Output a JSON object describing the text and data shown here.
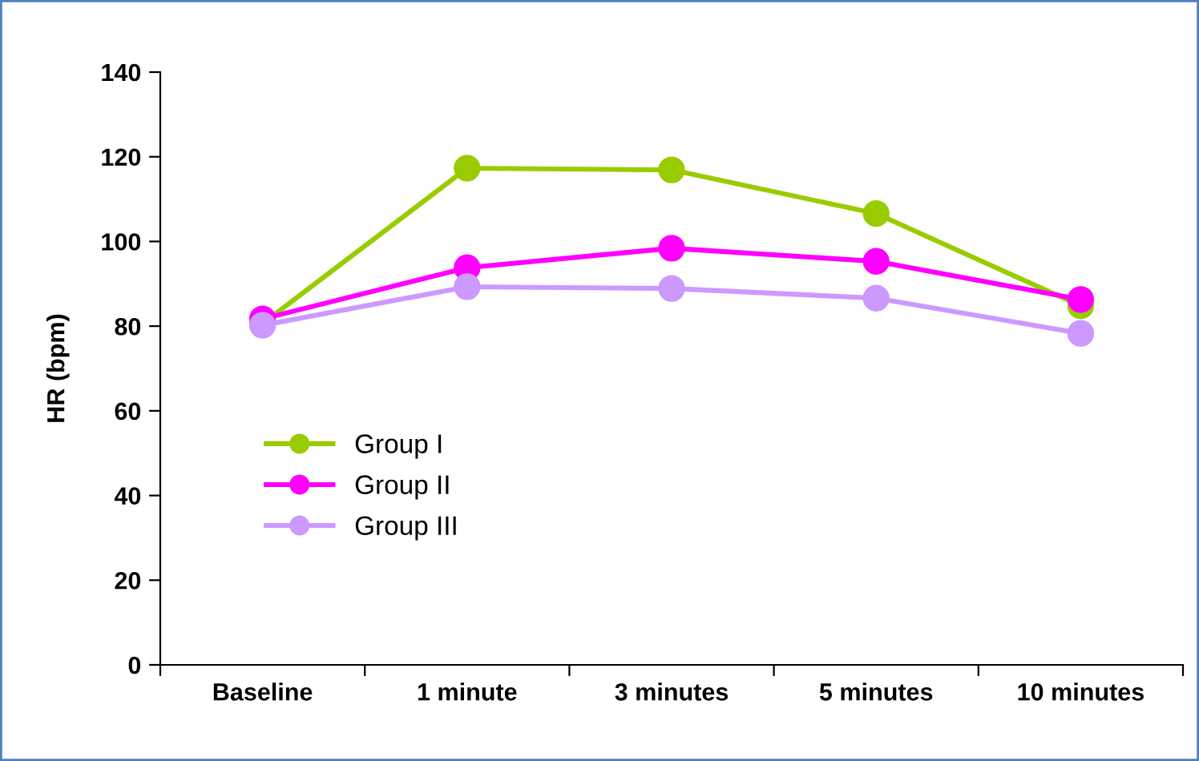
{
  "chart_data": {
    "type": "line",
    "ylabel": "HR (bpm)",
    "categories": [
      "Baseline",
      "1 minute",
      "3 minutes",
      "5 minutes",
      "10 minutes"
    ],
    "series": [
      {
        "name": "Group I",
        "color": "#99cc00",
        "values": [
          80.6,
          117.3,
          116.9,
          106.6,
          84.8
        ]
      },
      {
        "name": "Group II",
        "color": "#ff00ff",
        "values": [
          81.7,
          93.8,
          98.4,
          95.3,
          86.3
        ]
      },
      {
        "name": "Group III",
        "color": "#cc99ff",
        "values": [
          80.2,
          89.3,
          88.9,
          86.6,
          78.3
        ]
      }
    ],
    "ylim": [
      0,
      140
    ],
    "yticks": [
      0,
      20,
      40,
      60,
      80,
      100,
      120,
      140
    ],
    "grid": false,
    "legend": "left",
    "marker": "circle",
    "line_style": "solid"
  }
}
